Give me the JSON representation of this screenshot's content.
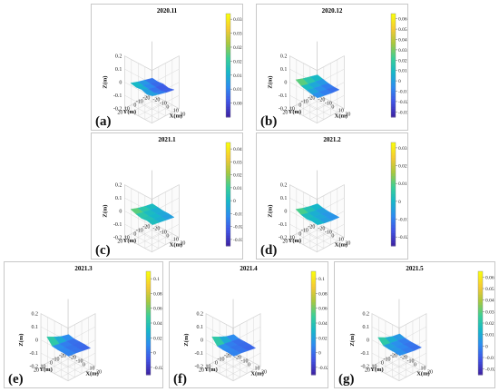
{
  "colormap": [
    "#3e26a8",
    "#4055e6",
    "#2d8cf0",
    "#16b8c9",
    "#3bcf96",
    "#a7c83e",
    "#f5c934",
    "#f9fb0e"
  ],
  "chart_data": [
    {
      "type": "surface3d",
      "label": "(a)",
      "title": "2020.11",
      "xlabel": "X(m)",
      "ylabel": "Y(m)",
      "zlabel": "Z(m)",
      "zlim": [
        -0.2,
        0.2
      ],
      "zticks": [
        "0.2",
        "0.1",
        "0",
        "-0.1",
        "-0.2"
      ],
      "xticks": [
        "-20",
        "-10",
        "0",
        "10",
        "20"
      ],
      "yticks": [
        "20",
        "10",
        "0",
        "-10",
        "-20"
      ],
      "colorbar_ticks": [
        "0.035",
        "0.03",
        "0.025",
        "0.02",
        "0.015",
        "0.01",
        "0.005"
      ],
      "colorbar_range": [
        0,
        0.037
      ],
      "grid": true,
      "surface_levels": [
        [
          0.55,
          0.45,
          0.5,
          0.35,
          0.45
        ],
        [
          0.4,
          0.35,
          0.3,
          0.25,
          0.35
        ],
        [
          0.3,
          0.25,
          0.2,
          0.15,
          0.25
        ],
        [
          0.2,
          0.15,
          0.2,
          0.1,
          0.2
        ]
      ]
    },
    {
      "type": "surface3d",
      "label": "(b)",
      "title": "2020.12",
      "xlabel": "X(m)",
      "ylabel": "Y(m)",
      "zlabel": "Z(m)",
      "zlim": [
        -0.2,
        0.2
      ],
      "zticks": [
        "0.2",
        "0.1",
        "0",
        "-0.1",
        "-0.2"
      ],
      "xticks": [
        "-20",
        "-10",
        "0",
        "10",
        "20"
      ],
      "yticks": [
        "20",
        "10",
        "0",
        "-10",
        "-20"
      ],
      "colorbar_ticks": [
        "0.06",
        "0.05",
        "0.04",
        "0.03",
        "0.02",
        "0.01",
        "0",
        "-0.01",
        "-0.02",
        "-0.03"
      ],
      "colorbar_range": [
        -0.035,
        0.065
      ],
      "grid": true,
      "surface_levels": [
        [
          0.8,
          0.55,
          0.45,
          0.35,
          0.3
        ],
        [
          0.65,
          0.45,
          0.35,
          0.3,
          0.25
        ],
        [
          0.55,
          0.4,
          0.3,
          0.25,
          0.2
        ],
        [
          0.45,
          0.35,
          0.25,
          0.2,
          0.2
        ]
      ]
    },
    {
      "type": "surface3d",
      "label": "(c)",
      "title": "2021.1",
      "xlabel": "X(m)",
      "ylabel": "Y(m)",
      "zlabel": "Z(m)",
      "zlim": [
        -0.2,
        0.2
      ],
      "zticks": [
        "0.2",
        "0.1",
        "0",
        "-0.1",
        "-0.2"
      ],
      "xticks": [
        "-20",
        "-10",
        "0",
        "10",
        "20"
      ],
      "yticks": [
        "20",
        "10",
        "0",
        "-10",
        "-20"
      ],
      "colorbar_ticks": [
        "0.04",
        "0.03",
        "0.02",
        "0.01",
        "0",
        "-0.01",
        "-0.02",
        "-0.03"
      ],
      "colorbar_range": [
        -0.035,
        0.045
      ],
      "grid": true,
      "surface_levels": [
        [
          0.75,
          0.6,
          0.5,
          0.55,
          0.45
        ],
        [
          0.6,
          0.5,
          0.45,
          0.45,
          0.4
        ],
        [
          0.5,
          0.45,
          0.4,
          0.4,
          0.35
        ],
        [
          0.45,
          0.4,
          0.35,
          0.35,
          0.3
        ]
      ]
    },
    {
      "type": "surface3d",
      "label": "(d)",
      "title": "2021.2",
      "xlabel": "X(m)",
      "ylabel": "Y(m)",
      "zlabel": "Z(m)",
      "zlim": [
        -0.2,
        0.2
      ],
      "zticks": [
        "0.2",
        "0.1",
        "0",
        "-0.1",
        "-0.2"
      ],
      "xticks": [
        "-20",
        "-10",
        "0",
        "10",
        "20"
      ],
      "yticks": [
        "20",
        "10",
        "0",
        "-10",
        "-20"
      ],
      "colorbar_ticks": [
        "0.03",
        "0.02",
        "0.01",
        "0",
        "-0.01",
        "-0.02"
      ],
      "colorbar_range": [
        -0.025,
        0.033
      ],
      "grid": true,
      "surface_levels": [
        [
          0.75,
          0.55,
          0.45,
          0.5,
          0.45
        ],
        [
          0.6,
          0.45,
          0.4,
          0.4,
          0.35
        ],
        [
          0.5,
          0.4,
          0.35,
          0.35,
          0.3
        ],
        [
          0.45,
          0.35,
          0.3,
          0.3,
          0.3
        ]
      ]
    },
    {
      "type": "surface3d",
      "label": "(e)",
      "title": "2021.3",
      "xlabel": "X(m)",
      "ylabel": "Y(m)",
      "zlabel": "Z(m)",
      "zlim": [
        -0.2,
        0.2
      ],
      "zticks": [
        "0.2",
        "0.1",
        "0",
        "-0.1",
        "-0.2"
      ],
      "xticks": [
        "-20",
        "-10",
        "0",
        "10",
        "20"
      ],
      "yticks": [
        "20",
        "10",
        "0",
        "-10",
        "-20"
      ],
      "colorbar_ticks": [
        "0.1",
        "0.08",
        "0.06",
        "0.04",
        "0.02",
        "0",
        "-0.02"
      ],
      "colorbar_range": [
        -0.03,
        0.11
      ],
      "grid": true,
      "surface_levels": [
        [
          0.85,
          0.35,
          0.3,
          0.3,
          0.25
        ],
        [
          0.6,
          0.3,
          0.25,
          0.25,
          0.25
        ],
        [
          0.4,
          0.25,
          0.2,
          0.2,
          0.2
        ],
        [
          0.3,
          0.2,
          0.2,
          0.2,
          0.15
        ]
      ]
    },
    {
      "type": "surface3d",
      "label": "(f)",
      "title": "2021.4",
      "xlabel": "X(m)",
      "ylabel": "Y(m)",
      "zlabel": "Z(m)",
      "zlim": [
        -0.2,
        0.2
      ],
      "zticks": [
        "0.2",
        "0.1",
        "0",
        "-0.1",
        "-0.2"
      ],
      "xticks": [
        "-20",
        "-10",
        "0",
        "10",
        "20"
      ],
      "yticks": [
        "20",
        "10",
        "0",
        "-10",
        "-20"
      ],
      "colorbar_ticks": [
        "0.1",
        "0.08",
        "0.06",
        "0.04",
        "0.02",
        "0",
        "-0.02"
      ],
      "colorbar_range": [
        -0.03,
        0.11
      ],
      "grid": true,
      "surface_levels": [
        [
          0.85,
          0.35,
          0.3,
          0.3,
          0.25
        ],
        [
          0.6,
          0.3,
          0.25,
          0.25,
          0.25
        ],
        [
          0.4,
          0.25,
          0.2,
          0.2,
          0.2
        ],
        [
          0.3,
          0.2,
          0.2,
          0.2,
          0.15
        ]
      ]
    },
    {
      "type": "surface3d",
      "label": "(g)",
      "title": "2021.5",
      "xlabel": "X(m)",
      "ylabel": "Y(m)",
      "zlabel": "Z(m)",
      "zlim": [
        -0.2,
        0.2
      ],
      "zticks": [
        "0.2",
        "0.1",
        "0",
        "-0.1",
        "-0.2"
      ],
      "xticks": [
        "-20",
        "-10",
        "0",
        "10",
        "20"
      ],
      "yticks": [
        "20",
        "10",
        "0",
        "-10",
        "-20"
      ],
      "colorbar_ticks": [
        "0.06",
        "0.05",
        "0.04",
        "0.03",
        "0.02",
        "0.01",
        "0",
        "-0.01",
        "-0.02"
      ],
      "colorbar_range": [
        -0.025,
        0.065
      ],
      "grid": true,
      "surface_levels": [
        [
          0.8,
          0.4,
          0.35,
          0.35,
          0.3
        ],
        [
          0.55,
          0.35,
          0.3,
          0.3,
          0.25
        ],
        [
          0.4,
          0.3,
          0.25,
          0.25,
          0.2
        ],
        [
          0.35,
          0.25,
          0.2,
          0.2,
          0.2
        ]
      ]
    }
  ]
}
